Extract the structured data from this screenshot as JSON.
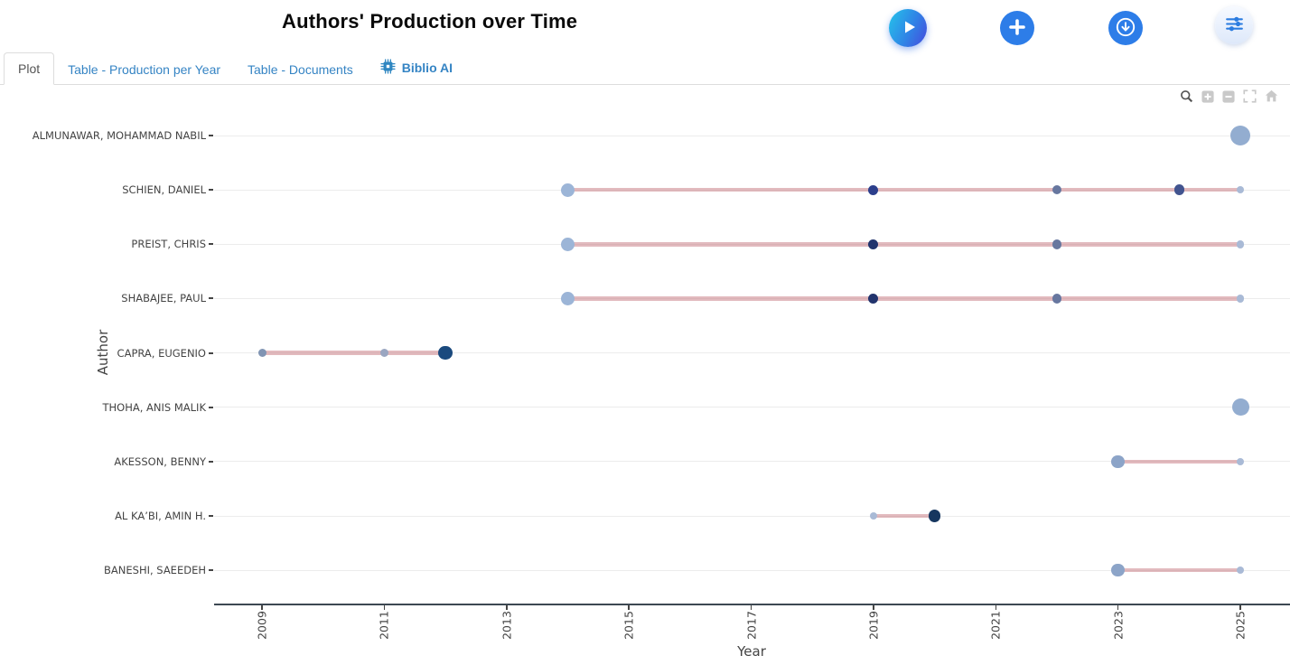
{
  "header": {
    "title": "Authors' Production over Time",
    "buttons": [
      {
        "name": "run-button",
        "icon": "play-icon",
        "color": "#2f84e6"
      },
      {
        "name": "add-button",
        "icon": "plus-icon",
        "color": "#2d7de8"
      },
      {
        "name": "download-button",
        "icon": "download-icon",
        "color": "#2d7de8"
      },
      {
        "name": "settings-button",
        "icon": "sliders-icon",
        "color": "#2b7ce0"
      }
    ]
  },
  "tabs": [
    {
      "label": "Plot",
      "active": true
    },
    {
      "label": "Table - Production per Year",
      "active": false
    },
    {
      "label": "Table - Documents",
      "active": false
    },
    {
      "label": "Biblio AI",
      "active": false,
      "icon": "chip-icon"
    }
  ],
  "modebar_icons": [
    "zoom-icon",
    "zoom-in-icon",
    "zoom-out-icon",
    "autoscale-icon",
    "reset-axes-icon"
  ],
  "chart_data": {
    "type": "scatter",
    "title": "Authors' Production over Time",
    "xlabel": "Year",
    "ylabel": "Author",
    "x_range": [
      2008.2,
      2025.8
    ],
    "x_ticks": [
      "2009",
      "2011",
      "2013",
      "2015",
      "2017",
      "2019",
      "2021",
      "2023",
      "2025"
    ],
    "grid": "horizontal",
    "legend": "none",
    "line_color": "#c5767e",
    "line_opacity": 0.5,
    "authors": [
      {
        "name": "ALMUNAWAR, MOHAMMAD NABIL",
        "line": null,
        "points": [
          {
            "year": 2025,
            "size": 22,
            "color": "#93add0"
          }
        ]
      },
      {
        "name": "SCHIEN, DANIEL",
        "line": [
          2014,
          2025
        ],
        "points": [
          {
            "year": 2014,
            "size": 15,
            "color": "#9cb5d7"
          },
          {
            "year": 2019,
            "size": 11,
            "color": "#2c3f8c"
          },
          {
            "year": 2022,
            "size": 10.5,
            "color": "#67779f"
          },
          {
            "year": 2024,
            "size": 11.5,
            "color": "#42548f"
          },
          {
            "year": 2025,
            "size": 8.5,
            "color": "#a9bad6"
          }
        ]
      },
      {
        "name": "PREIST, CHRIS",
        "line": [
          2014,
          2025
        ],
        "points": [
          {
            "year": 2014,
            "size": 15,
            "color": "#9cb5d7"
          },
          {
            "year": 2019,
            "size": 11,
            "color": "#22346d"
          },
          {
            "year": 2022,
            "size": 10.5,
            "color": "#67779f"
          },
          {
            "year": 2025,
            "size": 8.5,
            "color": "#a9bad6"
          }
        ]
      },
      {
        "name": "SHABAJEE, PAUL",
        "line": [
          2014,
          2025
        ],
        "points": [
          {
            "year": 2014,
            "size": 15,
            "color": "#9cb5d7"
          },
          {
            "year": 2019,
            "size": 11,
            "color": "#22346d"
          },
          {
            "year": 2022,
            "size": 10.5,
            "color": "#67779f"
          },
          {
            "year": 2025,
            "size": 8.5,
            "color": "#a9bad6"
          }
        ]
      },
      {
        "name": "CAPRA, EUGENIO",
        "line": [
          2009,
          2012
        ],
        "points": [
          {
            "year": 2009,
            "size": 9,
            "color": "#8094b3"
          },
          {
            "year": 2011,
            "size": 9,
            "color": "#9aa6c1"
          },
          {
            "year": 2012,
            "size": 15.5,
            "color": "#1b4a7e"
          }
        ]
      },
      {
        "name": "THOHA, ANIS MALIK",
        "line": null,
        "points": [
          {
            "year": 2025,
            "size": 19,
            "color": "#93add0"
          }
        ]
      },
      {
        "name": "AKESSON, BENNY",
        "line": [
          2023,
          2025
        ],
        "points": [
          {
            "year": 2023,
            "size": 14.5,
            "color": "#8ca4c8"
          },
          {
            "year": 2025,
            "size": 8.5,
            "color": "#a9bad6"
          }
        ]
      },
      {
        "name": "AL KA’BI, AMIN H.",
        "line": [
          2019,
          2020
        ],
        "points": [
          {
            "year": 2019,
            "size": 8.5,
            "color": "#a9bad6"
          },
          {
            "year": 2020,
            "size": 13.5,
            "color": "#16365f"
          }
        ]
      },
      {
        "name": "BANESHI, SAEEDEH",
        "line": [
          2023,
          2025
        ],
        "points": [
          {
            "year": 2023,
            "size": 14.5,
            "color": "#8ca4c8"
          },
          {
            "year": 2025,
            "size": 8.5,
            "color": "#a9bad6"
          }
        ]
      }
    ]
  }
}
